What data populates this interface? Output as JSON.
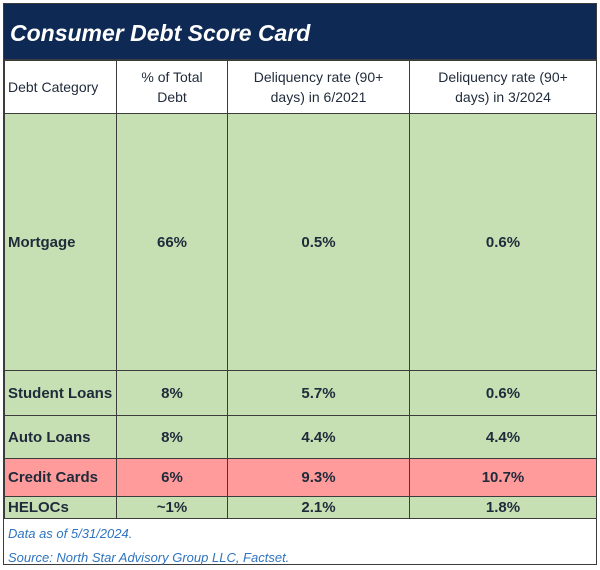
{
  "header": {
    "title": "Consumer Debt Score Card"
  },
  "table": {
    "columns": [
      "Debt Category",
      "% of Total Debt",
      "Deliquency rate (90+ days) in 6/2021",
      "Deliquency rate (90+ days) in 3/2024"
    ],
    "rows": [
      [
        "Mortgage",
        "66%",
        "0.5%",
        "0.6%"
      ],
      [
        "Student Loans",
        "8%",
        "5.7%",
        "0.6%"
      ],
      [
        "Auto Loans",
        "8%",
        "4.4%",
        "4.4%"
      ],
      [
        "Credit Cards",
        "6%",
        "9.3%",
        "10.7%"
      ],
      [
        "HELOCs",
        "~1%",
        "2.1%",
        "1.8%"
      ]
    ]
  },
  "footer": {
    "notes": [
      "Data as of 5/31/2024.",
      "Source: North Star Advisory Group LLC, Factset."
    ]
  }
}
